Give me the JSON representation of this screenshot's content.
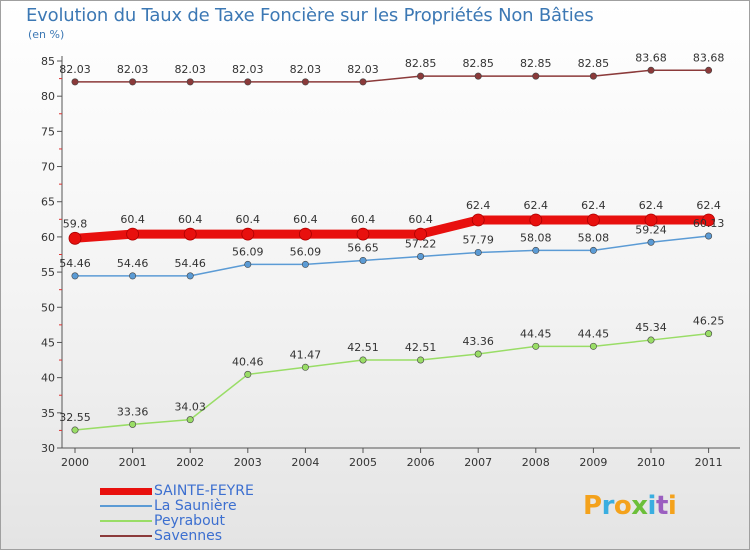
{
  "header": {
    "title": "Evolution du Taux de Taxe Foncière sur les Propriétés Non Bâties",
    "unit": "(en %)"
  },
  "chart_data": {
    "type": "line",
    "title": "Evolution du Taux de Taxe Foncière sur les Propriétés Non Bâties",
    "ylabel": "(en %)",
    "xlabel": "",
    "x": [
      "2000",
      "2001",
      "2002",
      "2003",
      "2004",
      "2005",
      "2006",
      "2007",
      "2008",
      "2009",
      "2010",
      "2011"
    ],
    "ylim": [
      30,
      85
    ],
    "yticks": [
      30,
      35,
      40,
      45,
      50,
      55,
      60,
      65,
      70,
      75,
      80,
      85
    ],
    "grid": false,
    "legend_position": "bottom-left",
    "series": [
      {
        "name": "SAINTE-FEYRE",
        "color": "#e8100e",
        "width": "thick",
        "values": [
          59.8,
          60.4,
          60.4,
          60.4,
          60.4,
          60.4,
          60.4,
          62.4,
          62.4,
          62.4,
          62.4,
          62.4
        ],
        "labels": [
          "59.8",
          "60.4",
          "60.4",
          "60.4",
          "60.4",
          "60.4",
          "60.4",
          "62.4",
          "62.4",
          "62.4",
          "62.4",
          "62.4"
        ]
      },
      {
        "name": "La Saunière",
        "color": "#5b9bd5",
        "width": "thin",
        "values": [
          54.46,
          54.46,
          54.46,
          56.09,
          56.09,
          56.65,
          57.22,
          57.79,
          58.08,
          58.08,
          59.24,
          60.13
        ],
        "labels": [
          "54.46",
          "54.46",
          "54.46",
          "56.09",
          "56.09",
          "56.65",
          "57.22",
          "57.79",
          "58.08",
          "58.08",
          "59.24",
          "60.13"
        ]
      },
      {
        "name": "Peyrabout",
        "color": "#99dd66",
        "width": "thin",
        "values": [
          32.55,
          33.36,
          34.03,
          40.46,
          41.47,
          42.51,
          42.51,
          43.36,
          44.45,
          44.45,
          45.34,
          46.25
        ],
        "labels": [
          "32.55",
          "33.36",
          "34.03",
          "40.46",
          "41.47",
          "42.51",
          "42.51",
          "43.36",
          "44.45",
          "44.45",
          "45.34",
          "46.25"
        ]
      },
      {
        "name": "Savennes",
        "color": "#8b3a3a",
        "width": "thin",
        "values": [
          82.03,
          82.03,
          82.03,
          82.03,
          82.03,
          82.03,
          82.85,
          82.85,
          82.85,
          82.85,
          83.68,
          83.68
        ],
        "labels": [
          "82.03",
          "82.03",
          "82.03",
          "82.03",
          "82.03",
          "82.03",
          "82.85",
          "82.85",
          "82.85",
          "82.85",
          "83.68",
          "83.68"
        ]
      }
    ]
  },
  "legend": [
    {
      "label": "SAINTE-FEYRE",
      "color": "#e8100e"
    },
    {
      "label": "La Saunière",
      "color": "#5b9bd5"
    },
    {
      "label": "Peyrabout",
      "color": "#99dd66"
    },
    {
      "label": "Savennes",
      "color": "#8b3a3a"
    }
  ],
  "logo": {
    "text": "Proxiti"
  }
}
